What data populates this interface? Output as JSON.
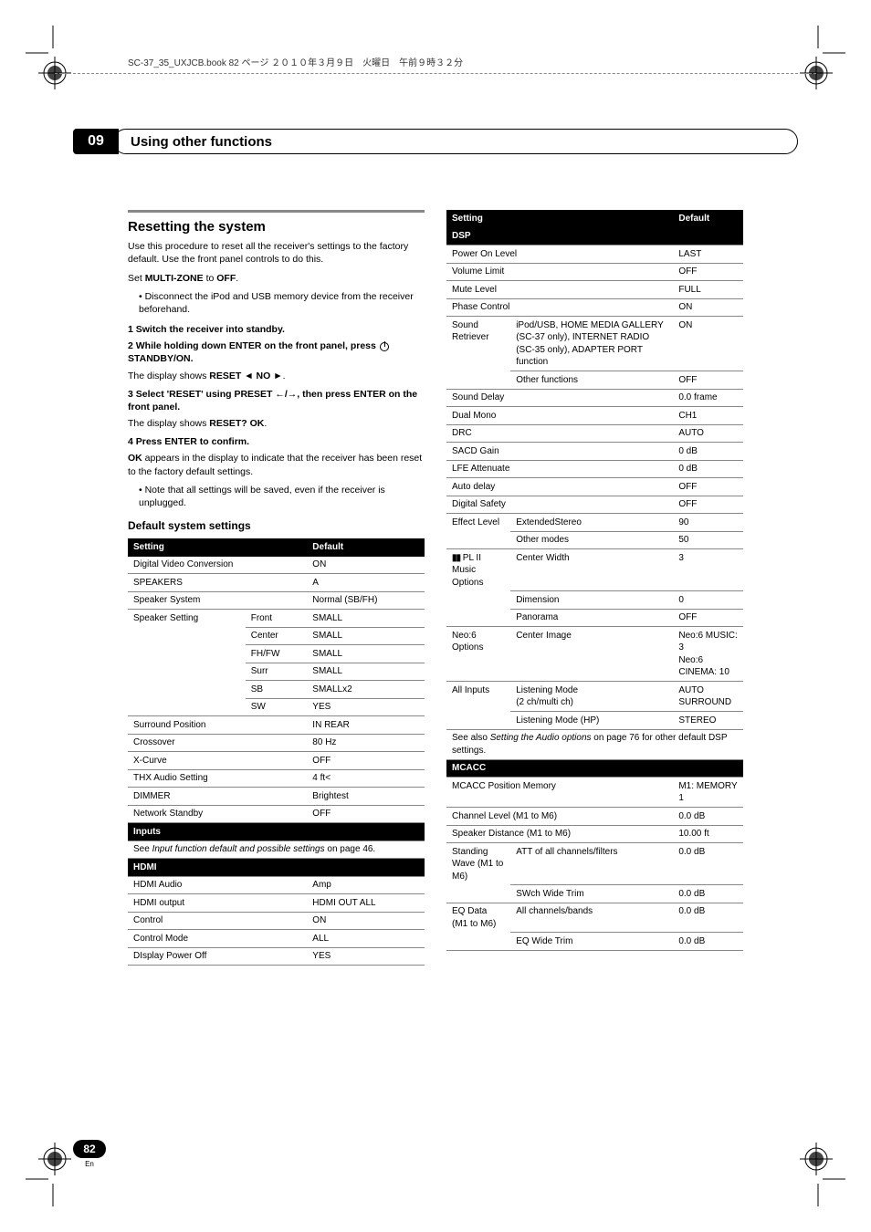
{
  "header_note": "SC-37_35_UXJCB.book  82 ページ  ２０１０年３月９日　火曜日　午前９時３２分",
  "chapter": {
    "num": "09",
    "title": "Using other functions"
  },
  "left": {
    "h2": "Resetting the system",
    "intro1": "Use this procedure to reset all the receiver's settings to the factory default. Use the front panel controls to do this.",
    "intro2_a": "Set ",
    "intro2_b": "MULTI-ZONE",
    "intro2_c": " to ",
    "intro2_d": "OFF",
    "intro2_e": ".",
    "bullet1": "Disconnect the iPod and USB memory device from the receiver beforehand.",
    "s1": "1   Switch the receiver into standby.",
    "s2a": "2   While holding down ENTER on the front panel, press ",
    "s2b": " STANDBY/ON.",
    "s2res_a": "The display shows ",
    "s2res_b": "RESET ◄ NO ►",
    "s2res_c": ".",
    "s3a": "3   Select 'RESET' using PRESET ←/→, then press ENTER on the front panel.",
    "s3res_a": "The display shows ",
    "s3res_b": "RESET? OK",
    "s3res_c": ".",
    "s4": "4   Press ENTER to confirm.",
    "s4res_a": "OK",
    "s4res_b": " appears in the display to indicate that the receiver has been reset to the factory default settings.",
    "bullet2": "Note that all settings will be saved, even if the receiver is unplugged.",
    "sub": "Default system settings",
    "th1": "Setting",
    "th2": "Default",
    "rows": [
      [
        "Digital Video Conversion",
        "",
        "ON"
      ],
      [
        "SPEAKERS",
        "",
        "A"
      ],
      [
        "Speaker System",
        "",
        "Normal (SB/FH)"
      ],
      [
        "Speaker Setting",
        "Front",
        "SMALL"
      ],
      [
        "",
        "Center",
        "SMALL"
      ],
      [
        "",
        "FH/FW",
        "SMALL"
      ],
      [
        "",
        "Surr",
        "SMALL"
      ],
      [
        "",
        "SB",
        "SMALLx2"
      ],
      [
        "",
        "SW",
        "YES"
      ],
      [
        "Surround Position",
        "",
        "IN REAR"
      ],
      [
        "Crossover",
        "",
        "80 Hz"
      ],
      [
        "X-Curve",
        "",
        "OFF"
      ],
      [
        "THX Audio Setting",
        "",
        "4 ft<"
      ],
      [
        "DIMMER",
        "",
        "Brightest"
      ],
      [
        "Network Standby",
        "",
        "OFF"
      ]
    ],
    "sec_inputs": "Inputs",
    "see_inputs_a": "See ",
    "see_inputs_b": "Input function default and possible settings",
    "see_inputs_c": " on page 46.",
    "sec_hdmi": "HDMI",
    "rows_hdmi": [
      [
        "HDMI Audio",
        "",
        "Amp"
      ],
      [
        "HDMI output",
        "",
        "HDMI OUT ALL"
      ],
      [
        "Control",
        "",
        "ON"
      ],
      [
        "Control Mode",
        "",
        "ALL"
      ],
      [
        "DIsplay Power Off",
        "",
        "YES"
      ]
    ]
  },
  "right": {
    "th1": "Setting",
    "th2": "Default",
    "sec_dsp": "DSP",
    "rows_dsp": [
      [
        "Power On Level",
        "",
        "LAST"
      ],
      [
        "Volume Limit",
        "",
        "OFF"
      ],
      [
        "Mute Level",
        "",
        "FULL"
      ],
      [
        "Phase Control",
        "",
        "ON"
      ],
      [
        "Sound Retriever",
        "iPod/USB, HOME MEDIA GALLERY (SC-37 only), INTERNET RADIO (SC-35 only), ADAPTER PORT function",
        "ON"
      ],
      [
        "",
        "Other functions",
        "OFF"
      ],
      [
        "Sound Delay",
        "",
        "0.0 frame"
      ],
      [
        "Dual Mono",
        "",
        "CH1"
      ],
      [
        "DRC",
        "",
        "AUTO"
      ],
      [
        "SACD Gain",
        "",
        "0 dB"
      ],
      [
        "LFE Attenuate",
        "",
        "0 dB"
      ],
      [
        "Auto delay",
        "",
        "OFF"
      ],
      [
        "Digital Safety",
        "",
        "OFF"
      ],
      [
        "Effect Level",
        "ExtendedStereo",
        "90"
      ],
      [
        "",
        "Other modes",
        "50"
      ],
      [
        "__DOLBY__ PL II Music Options",
        "Center Width",
        "3"
      ],
      [
        "",
        "Dimension",
        "0"
      ],
      [
        "",
        "Panorama",
        "OFF"
      ],
      [
        "Neo:6 Options",
        "Center Image",
        "Neo:6 MUSIC: 3\nNeo:6 CINEMA: 10"
      ],
      [
        "All Inputs",
        "Listening Mode\n(2 ch/multi ch)",
        "AUTO SURROUND"
      ],
      [
        "",
        "Listening Mode (HP)",
        "STEREO"
      ]
    ],
    "see_dsp_a": "See also ",
    "see_dsp_b": "Setting the Audio options",
    "see_dsp_c": " on page 76 for other default DSP settings.",
    "sec_mcacc": "MCACC",
    "rows_mcacc": [
      [
        "MCACC Position Memory",
        "",
        "M1: MEMORY 1"
      ],
      [
        "Channel Level (M1 to M6)",
        "",
        "0.0 dB"
      ],
      [
        "Speaker Distance (M1 to M6)",
        "",
        "10.00 ft"
      ],
      [
        "Standing Wave\n(M1 to M6)",
        "ATT of all channels/filters",
        "0.0 dB"
      ],
      [
        "",
        "SWch Wide Trim",
        "0.0 dB"
      ],
      [
        "EQ Data (M1 to M6)",
        "All channels/bands",
        "0.0 dB"
      ],
      [
        "",
        "EQ Wide Trim",
        "0.0 dB"
      ]
    ]
  },
  "footer": {
    "page": "82",
    "lang": "En"
  }
}
